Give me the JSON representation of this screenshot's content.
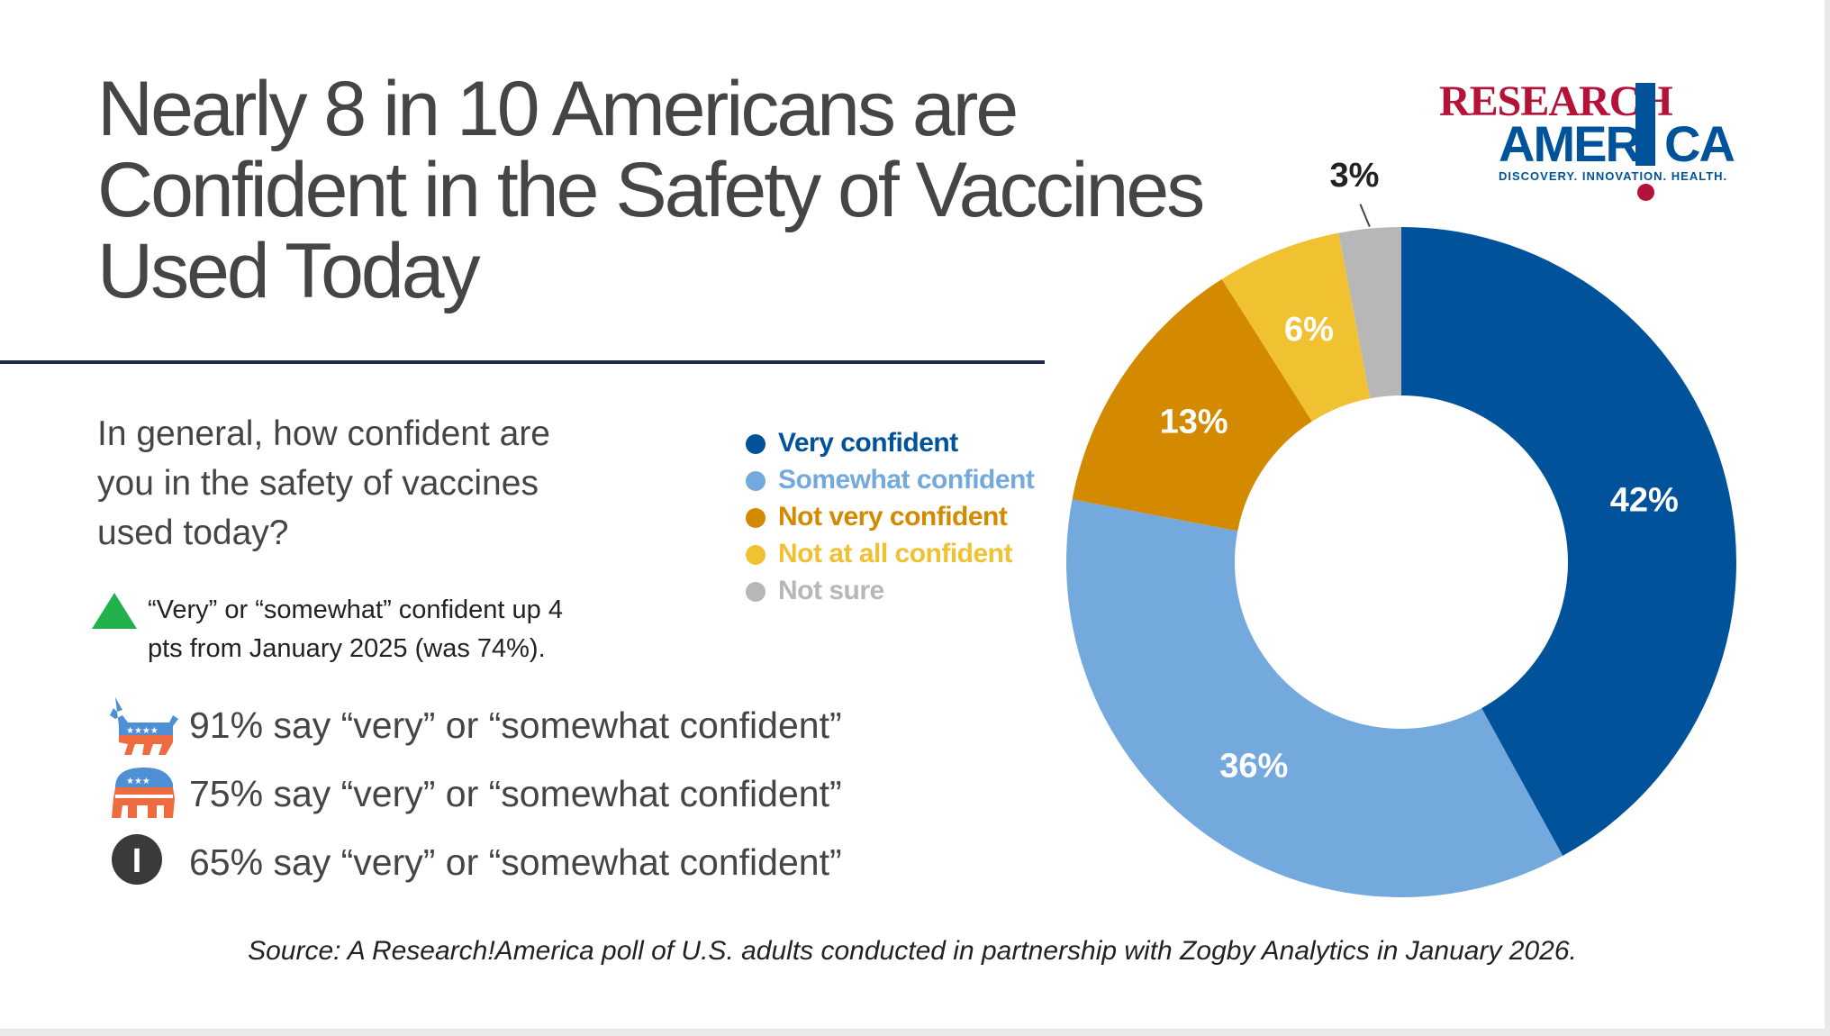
{
  "title_lines": [
    "Nearly 8 in 10 Americans are",
    "Confident in the Safety of Vaccines",
    "Used Today"
  ],
  "logo": {
    "line1": "RESEARCH",
    "line2": "AMER  CA",
    "tagline": "DISCOVERY. INNOVATION. HEALTH.",
    "colors": {
      "red": "#b5123a",
      "blue": "#00529b"
    }
  },
  "question_lines": [
    "In general, how confident are",
    "you in the safety of vaccines",
    "used today?"
  ],
  "change_note": {
    "icon": "triangle-up-icon",
    "lines": [
      "“Very” or “somewhat” confident up 4",
      "pts from January 2025 (was 74%)."
    ]
  },
  "party_stats": [
    {
      "icon": "democrat-donkey-icon",
      "text": "91% say “very” or “somewhat confident”"
    },
    {
      "icon": "republican-elephant-icon",
      "text": "75% say “very” or “somewhat confident”"
    },
    {
      "icon": "independent-i-icon",
      "icon_letter": "I",
      "text": "65% say “very” or “somewhat confident”"
    }
  ],
  "source": "Source: A Research!America poll of U.S. adults conducted in partnership with Zogby Analytics in January 2026.",
  "chart_data": {
    "type": "pie",
    "title": "",
    "donut": true,
    "legend_position": "left",
    "categories": [
      "Very confident",
      "Somewhat confident",
      "Not very confident",
      "Not at all confident",
      "Not sure"
    ],
    "values": [
      42,
      36,
      13,
      6,
      3
    ],
    "labels": [
      "42%",
      "36%",
      "13%",
      "6%",
      "3%"
    ],
    "colors": [
      "#00529b",
      "#74a9dd",
      "#d48a00",
      "#f0c232",
      "#b7b7b7"
    ],
    "start": "top, clockwise"
  }
}
